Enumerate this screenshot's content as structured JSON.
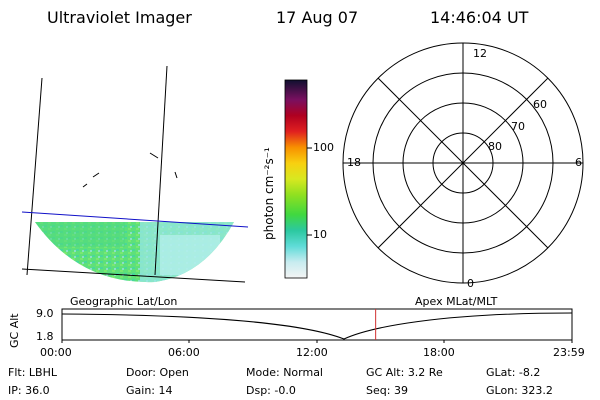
{
  "header": {
    "instrument": "Ultraviolet Imager",
    "date": "17 Aug 07",
    "time": "14:46:04 UT"
  },
  "colorbar": {
    "label": "photon cm⁻²s⁻¹",
    "ticks": [
      "100",
      "10"
    ]
  },
  "polar": {
    "lat_labels": [
      "60",
      "70",
      "80"
    ],
    "mlt_labels": {
      "top": "12",
      "left": "18",
      "right": "6",
      "bottom": "0"
    }
  },
  "map_labels": {
    "left": "Geographic Lat/Lon",
    "right": "Apex MLat/MLT"
  },
  "gc_alt_plot": {
    "axis_label": "GC Alt",
    "y_ticks": [
      "9.0",
      "1.8"
    ],
    "x_ticks": [
      "00:00",
      "06:00",
      "12:00",
      "18:00",
      "23:59"
    ],
    "current_time_fraction": 0.615,
    "marker_color": "#d03030"
  },
  "status": {
    "row1": [
      {
        "key": "Flt:",
        "value": "LBHL"
      },
      {
        "key": "Door:",
        "value": "Open"
      },
      {
        "key": "Mode:",
        "value": "Normal"
      },
      {
        "key": "GC Alt:",
        "value": "3.2 Re"
      },
      {
        "key": "GLat:",
        "value": "-8.2"
      }
    ],
    "row2": [
      {
        "key": "IP:",
        "value": "36.0"
      },
      {
        "key": "Gain:",
        "value": "14"
      },
      {
        "key": "Dsp:",
        "value": "-0.0"
      },
      {
        "key": "Seq:",
        "value": "39"
      },
      {
        "key": "GLon:",
        "value": "323.2"
      }
    ]
  }
}
